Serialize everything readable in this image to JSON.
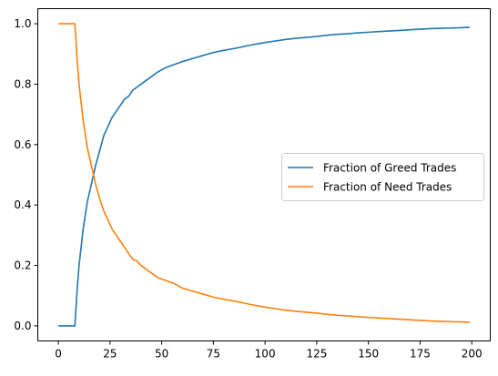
{
  "chart_data": {
    "type": "line",
    "title": "",
    "xlabel": "",
    "ylabel": "",
    "xlim": [
      -9.95,
      208.95
    ],
    "ylim": [
      -0.05,
      1.05
    ],
    "x_ticks": [
      0,
      25,
      50,
      75,
      100,
      125,
      150,
      175,
      200
    ],
    "x_tick_labels": [
      "0",
      "25",
      "50",
      "75",
      "100",
      "125",
      "150",
      "175",
      "200"
    ],
    "y_ticks": [
      0.0,
      0.2,
      0.4,
      0.6,
      0.8,
      1.0
    ],
    "y_tick_labels": [
      "0.0",
      "0.2",
      "0.4",
      "0.6",
      "0.8",
      "1.0"
    ],
    "grid": false,
    "legend_position": "center-right",
    "x": [
      0,
      8,
      9,
      10,
      12,
      14,
      16,
      18,
      20,
      22,
      24,
      26,
      28,
      30,
      32,
      34,
      36,
      38,
      40,
      44,
      48,
      52,
      56,
      60,
      65,
      70,
      75,
      80,
      85,
      90,
      95,
      100,
      105,
      110,
      115,
      120,
      125,
      130,
      135,
      140,
      145,
      150,
      155,
      160,
      165,
      170,
      175,
      180,
      185,
      190,
      195,
      199
    ],
    "series": [
      {
        "name": "Fraction of Greed Trades",
        "color": "#1f77b4",
        "values": [
          0.0,
          0.0,
          0.11,
          0.2,
          0.32,
          0.41,
          0.47,
          0.53,
          0.58,
          0.63,
          0.66,
          0.69,
          0.71,
          0.73,
          0.75,
          0.76,
          0.78,
          0.79,
          0.8,
          0.82,
          0.84,
          0.855,
          0.865,
          0.875,
          0.885,
          0.895,
          0.905,
          0.912,
          0.918,
          0.925,
          0.932,
          0.938,
          0.943,
          0.948,
          0.952,
          0.955,
          0.958,
          0.962,
          0.965,
          0.967,
          0.97,
          0.972,
          0.974,
          0.976,
          0.978,
          0.98,
          0.982,
          0.984,
          0.985,
          0.986,
          0.987,
          0.988
        ]
      },
      {
        "name": "Fraction of Need Trades",
        "color": "#ff7f0e",
        "values": [
          1.0,
          1.0,
          0.89,
          0.8,
          0.68,
          0.59,
          0.53,
          0.47,
          0.42,
          0.38,
          0.35,
          0.32,
          0.3,
          0.28,
          0.26,
          0.24,
          0.22,
          0.215,
          0.2,
          0.18,
          0.16,
          0.15,
          0.14,
          0.125,
          0.115,
          0.105,
          0.095,
          0.088,
          0.082,
          0.075,
          0.068,
          0.062,
          0.057,
          0.052,
          0.048,
          0.045,
          0.042,
          0.038,
          0.035,
          0.033,
          0.03,
          0.028,
          0.026,
          0.024,
          0.022,
          0.02,
          0.018,
          0.016,
          0.015,
          0.014,
          0.013,
          0.012
        ]
      }
    ]
  }
}
